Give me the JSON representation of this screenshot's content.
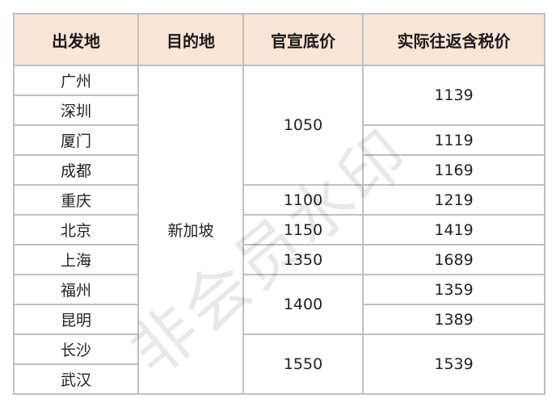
{
  "headers": [
    "出发地",
    "目的地",
    "官宣底价",
    "实际往返含税价"
  ],
  "destination": "新加坡",
  "origins": [
    "广州",
    "深圳",
    "厦门",
    "成都",
    "重庆",
    "北京",
    "上海",
    "福州",
    "昆明",
    "长沙",
    "武汉"
  ],
  "base_prices": [
    "1050",
    "1100",
    "1150",
    "1350",
    "1400",
    "1550"
  ],
  "actual_prices": [
    "1139",
    "1119",
    "1169",
    "1219",
    "1419",
    "1689",
    "1359",
    "1389",
    "1539"
  ],
  "watermark": "非会员水印"
}
